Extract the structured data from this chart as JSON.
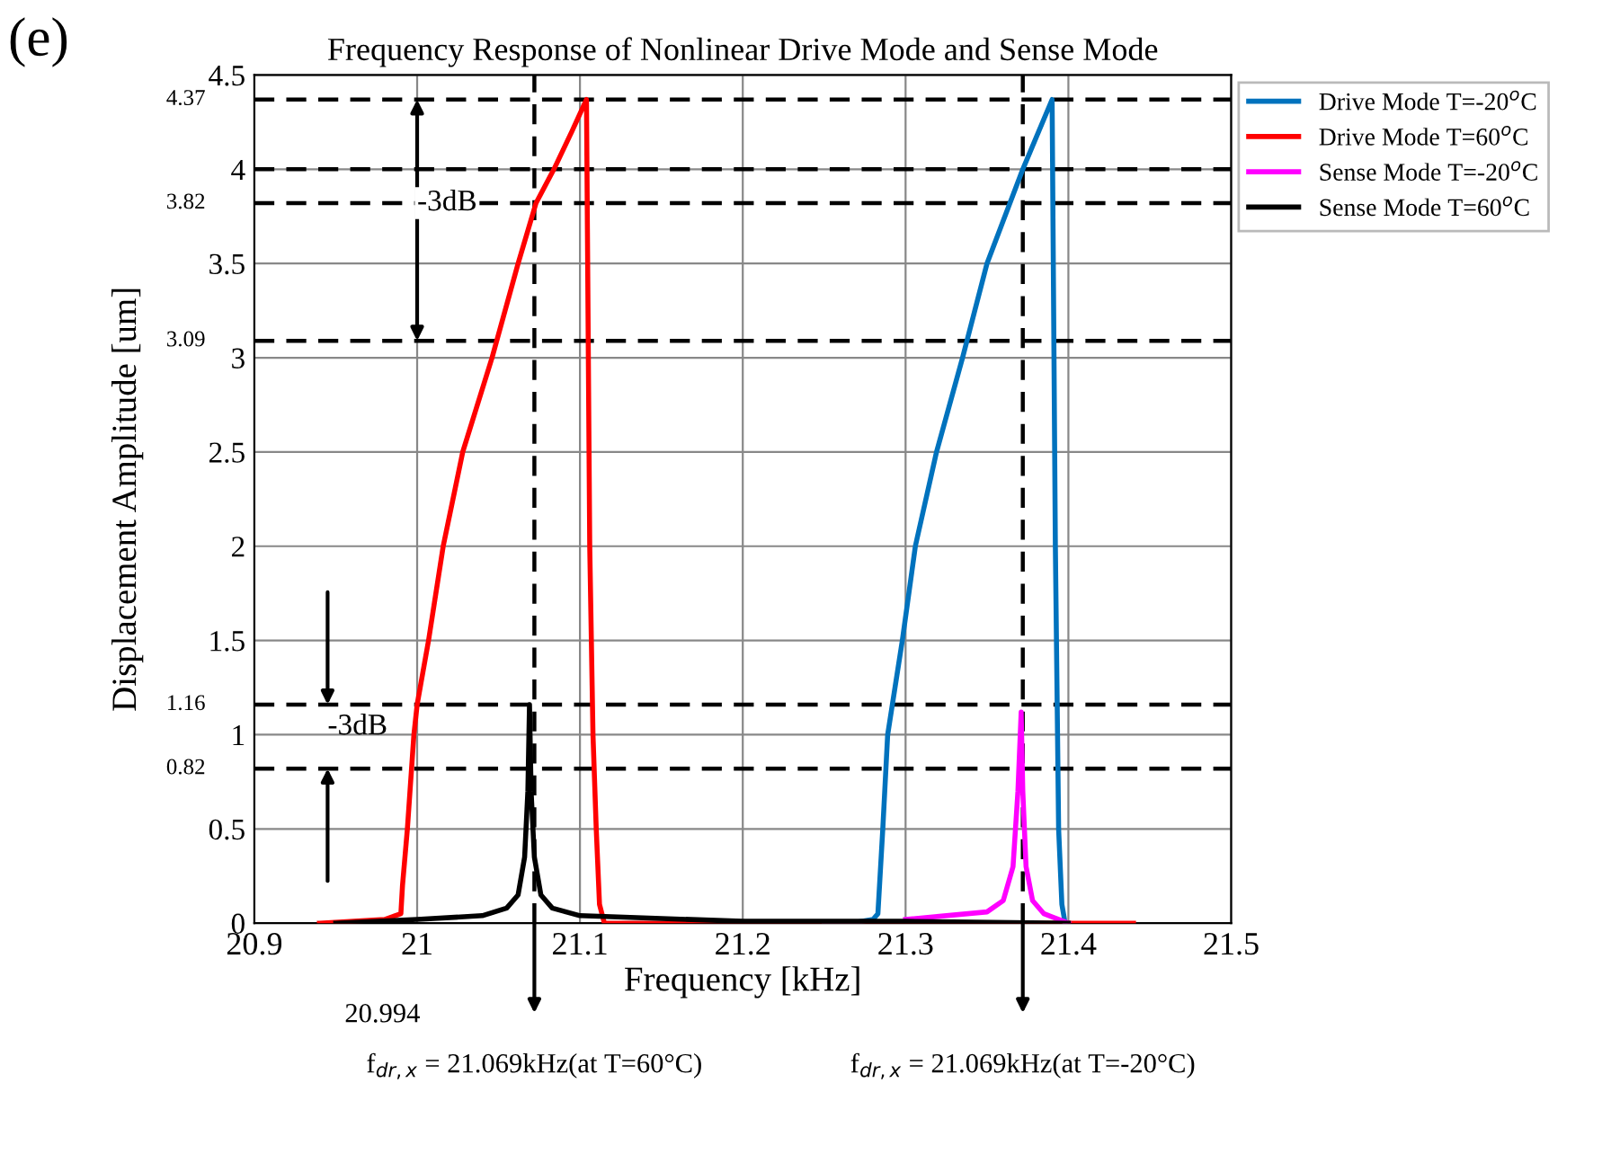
{
  "chart_data": {
    "type": "line",
    "title": "Frequency Response of Nonlinear Drive Mode and Sense Mode",
    "xlabel": "Frequency [kHz]",
    "ylabel": "Displacement Amplitude [um]",
    "xlim": [
      20.9,
      21.5
    ],
    "xticks": [
      20.9,
      21,
      21.1,
      21.2,
      21.3,
      21.4,
      21.5
    ],
    "ylim": [
      0,
      4.5
    ],
    "yticks": [
      0,
      0.5,
      1,
      1.5,
      2,
      2.5,
      3,
      3.5,
      4,
      4.5
    ],
    "grid": true,
    "legend": "top right",
    "marker": "none",
    "line_style": "solid",
    "series": [
      {
        "name": "Drive Mode T=-20$^{o}$C",
        "color": "#0072bd",
        "x": [
          21.25,
          21.266,
          21.28,
          21.283,
          21.286,
          21.289,
          21.298,
          21.306,
          21.319,
          21.335,
          21.35,
          21.372,
          21.39,
          21.392,
          21.394,
          21.396,
          21.398
        ],
        "values": [
          0,
          0,
          0.02,
          0.05,
          0.5,
          1.0,
          1.5,
          2.0,
          2.5,
          3.0,
          3.5,
          4.0,
          4.37,
          2.0,
          0.5,
          0.1,
          0
        ]
      },
      {
        "name": "Drive Mode T=60$^{o}$C",
        "color": "#ff0000",
        "x": [
          20.94,
          20.98,
          20.99,
          20.991,
          20.994,
          20.998,
          21.0,
          21.007,
          21.016,
          21.028,
          21.046,
          21.062,
          21.073,
          21.084,
          21.095,
          21.104,
          21.106,
          21.107,
          21.108,
          21.11,
          21.112,
          21.115,
          21.2,
          21.3,
          21.44
        ],
        "values": [
          0,
          0.02,
          0.05,
          0.2,
          0.5,
          1.0,
          1.16,
          1.5,
          2.0,
          2.5,
          3.0,
          3.5,
          3.82,
          4.0,
          4.2,
          4.37,
          2.0,
          1.5,
          1.0,
          0.5,
          0.1,
          0,
          0,
          0,
          0
        ]
      },
      {
        "name": "Sense Mode T=-20$^{o}$C",
        "color": "#ff00ff",
        "x": [
          21.3,
          21.35,
          21.36,
          21.366,
          21.369,
          21.371,
          21.372,
          21.374,
          21.378,
          21.385,
          21.4
        ],
        "values": [
          0.02,
          0.06,
          0.12,
          0.3,
          0.7,
          1.12,
          0.7,
          0.3,
          0.12,
          0.05,
          0
        ]
      },
      {
        "name": "Sense Mode T=60$^{o}$C",
        "color": "#000000",
        "x": [
          20.95,
          21.0,
          21.04,
          21.055,
          21.062,
          21.066,
          21.068,
          21.069,
          21.07,
          21.072,
          21.076,
          21.083,
          21.1,
          21.2,
          21.3,
          21.4
        ],
        "values": [
          0,
          0.02,
          0.04,
          0.08,
          0.15,
          0.35,
          0.7,
          1.16,
          0.7,
          0.35,
          0.15,
          0.08,
          0.04,
          0.01,
          0.01,
          0
        ]
      }
    ],
    "ref_lines": [
      {
        "axis": "y",
        "value": 4.37,
        "label": "4.37",
        "color": "#000000",
        "line_style": "dashed"
      },
      {
        "axis": "y",
        "value": 4.0,
        "color": "#000000",
        "line_style": "dashed"
      },
      {
        "axis": "y",
        "value": 3.82,
        "label": "3.82",
        "color": "#000000",
        "line_style": "dashed"
      },
      {
        "axis": "y",
        "value": 3.09,
        "label": "3.09",
        "color": "#000000",
        "line_style": "dashed"
      },
      {
        "axis": "y",
        "value": 1.16,
        "label": "1.16",
        "color": "#000000",
        "line_style": "dashed"
      },
      {
        "axis": "y",
        "value": 0.82,
        "label": "0.82",
        "color": "#000000",
        "line_style": "dashed"
      },
      {
        "axis": "x",
        "value": 21.072,
        "color": "#000000",
        "line_style": "dashed"
      },
      {
        "axis": "x",
        "value": 21.372,
        "color": "#000000",
        "line_style": "dashed"
      }
    ],
    "annotations": [
      "(e)",
      {
        "text": "-3dB",
        "x": 21.0,
        "y": 3.82
      },
      "-3dB",
      {
        "text": "20.994",
        "x": 20.994,
        "y": 0
      },
      "f$_{dr,x}$ = 21.069kHz(at T=60°C)",
      "f$_{dr,x}$ = 21.069kHz(at T=-20°C)"
    ]
  }
}
